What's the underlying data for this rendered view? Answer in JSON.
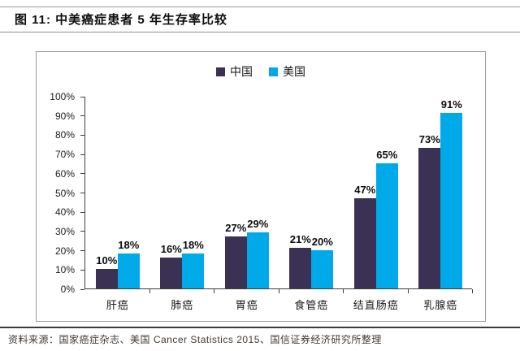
{
  "figure": {
    "title": "图 11: 中美癌症患者 5 年生存率比较"
  },
  "chart_data": {
    "type": "bar",
    "title": "图 11: 中美癌症患者 5 年生存率比较",
    "categories": [
      "肝癌",
      "肺癌",
      "胃癌",
      "食管癌",
      "结直肠癌",
      "乳腺癌"
    ],
    "series": [
      {
        "name": "中国",
        "color": "#3B3154",
        "values": [
          10,
          16,
          27,
          21,
          47,
          73
        ],
        "labels": [
          "10%",
          "16%",
          "27%",
          "21%",
          "47%",
          "73%"
        ]
      },
      {
        "name": "美国",
        "color": "#00A9E8",
        "values": [
          18,
          18,
          29,
          20,
          65,
          91
        ],
        "labels": [
          "18%",
          "18%",
          "29%",
          "20%",
          "65%",
          "91%"
        ]
      }
    ],
    "xlabel": "",
    "ylabel": "",
    "ylim": [
      0,
      100
    ],
    "yticks": [
      "0%",
      "10%",
      "20%",
      "30%",
      "40%",
      "50%",
      "60%",
      "70%",
      "80%",
      "90%",
      "100%"
    ],
    "grid": false,
    "legend_position": "top-center"
  },
  "footer": {
    "source": "资料来源：国家癌症杂志、美国 Cancer Statistics 2015、国信证券经济研究所整理"
  }
}
